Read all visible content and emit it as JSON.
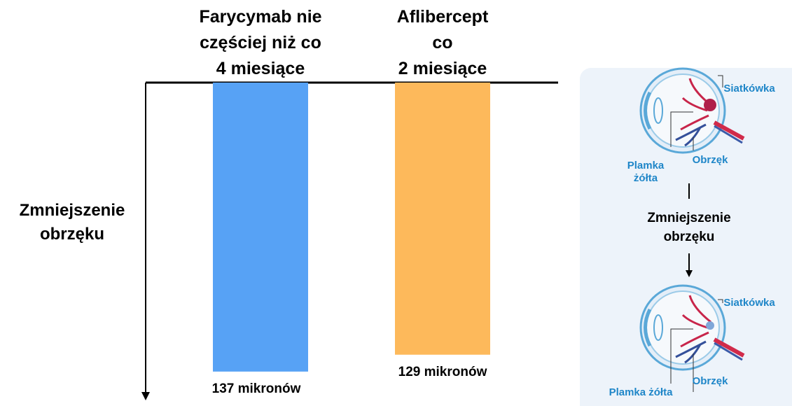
{
  "chart_data": {
    "type": "bar",
    "y_inverted": true,
    "y_label": "Zmniejszenie\nobrzęku",
    "categories": [
      "Farycymab nie\nczęściej niż co\n4 miesiące",
      "Aflibercept\nco\n2 miesiące"
    ],
    "values": [
      137,
      129
    ],
    "value_labels": [
      "137 mikronów",
      "129 mikronów"
    ],
    "colors": [
      "#57a2f5",
      "#fdb95b"
    ],
    "ylim": [
      0,
      150
    ]
  },
  "panel": {
    "top_labels": {
      "retina": "Siatkówka",
      "macula": "Plamka\nżółta",
      "edema": "Obrzęk"
    },
    "middle": "Zmniejszenie\nobrzęku",
    "bottom_labels": {
      "retina": "Siatkówka",
      "edema": "Obrzęk",
      "macula": "Plamka żółta"
    }
  }
}
